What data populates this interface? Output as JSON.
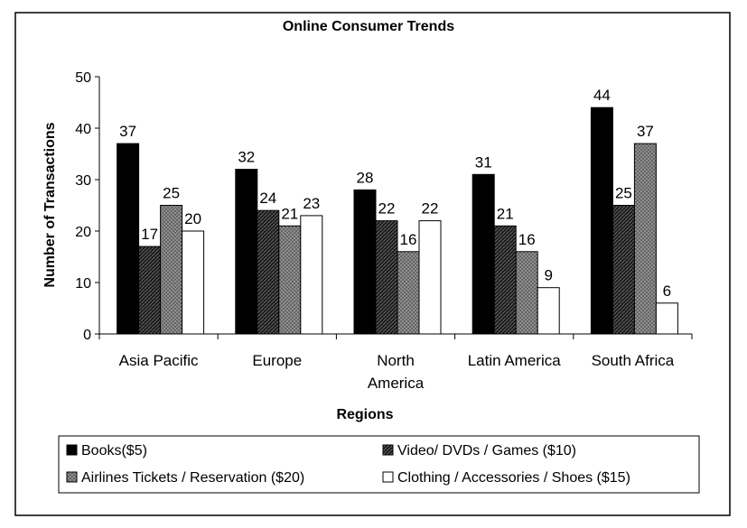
{
  "chart_data": {
    "type": "bar",
    "title": "Online Consumer Trends",
    "xlabel": "Regions",
    "ylabel": "Number of Transactions",
    "ylim": [
      0,
      50
    ],
    "yticks": [
      0,
      10,
      20,
      30,
      40,
      50
    ],
    "grid": false,
    "legend_position": "bottom",
    "categories": [
      [
        "Asia Pacific"
      ],
      [
        "Europe"
      ],
      [
        "North",
        "America"
      ],
      [
        "Latin America"
      ],
      [
        "South Africa"
      ]
    ],
    "series": [
      {
        "name": "Books($5)",
        "values": [
          37,
          32,
          28,
          31,
          44
        ],
        "fill": "solid",
        "color": "#000000"
      },
      {
        "name": "Video/ DVDs / Games ($10)",
        "values": [
          17,
          24,
          22,
          21,
          25
        ],
        "fill": "dark-hatch",
        "color": "#222222"
      },
      {
        "name": "Airlines Tickets / Reservation ($20)",
        "values": [
          25,
          21,
          16,
          16,
          37
        ],
        "fill": "gray-hatch",
        "color": "#909090"
      },
      {
        "name": "Clothing / Accessories / Shoes ($15)",
        "values": [
          20,
          23,
          22,
          9,
          6
        ],
        "fill": "white",
        "color": "#ffffff"
      }
    ]
  }
}
